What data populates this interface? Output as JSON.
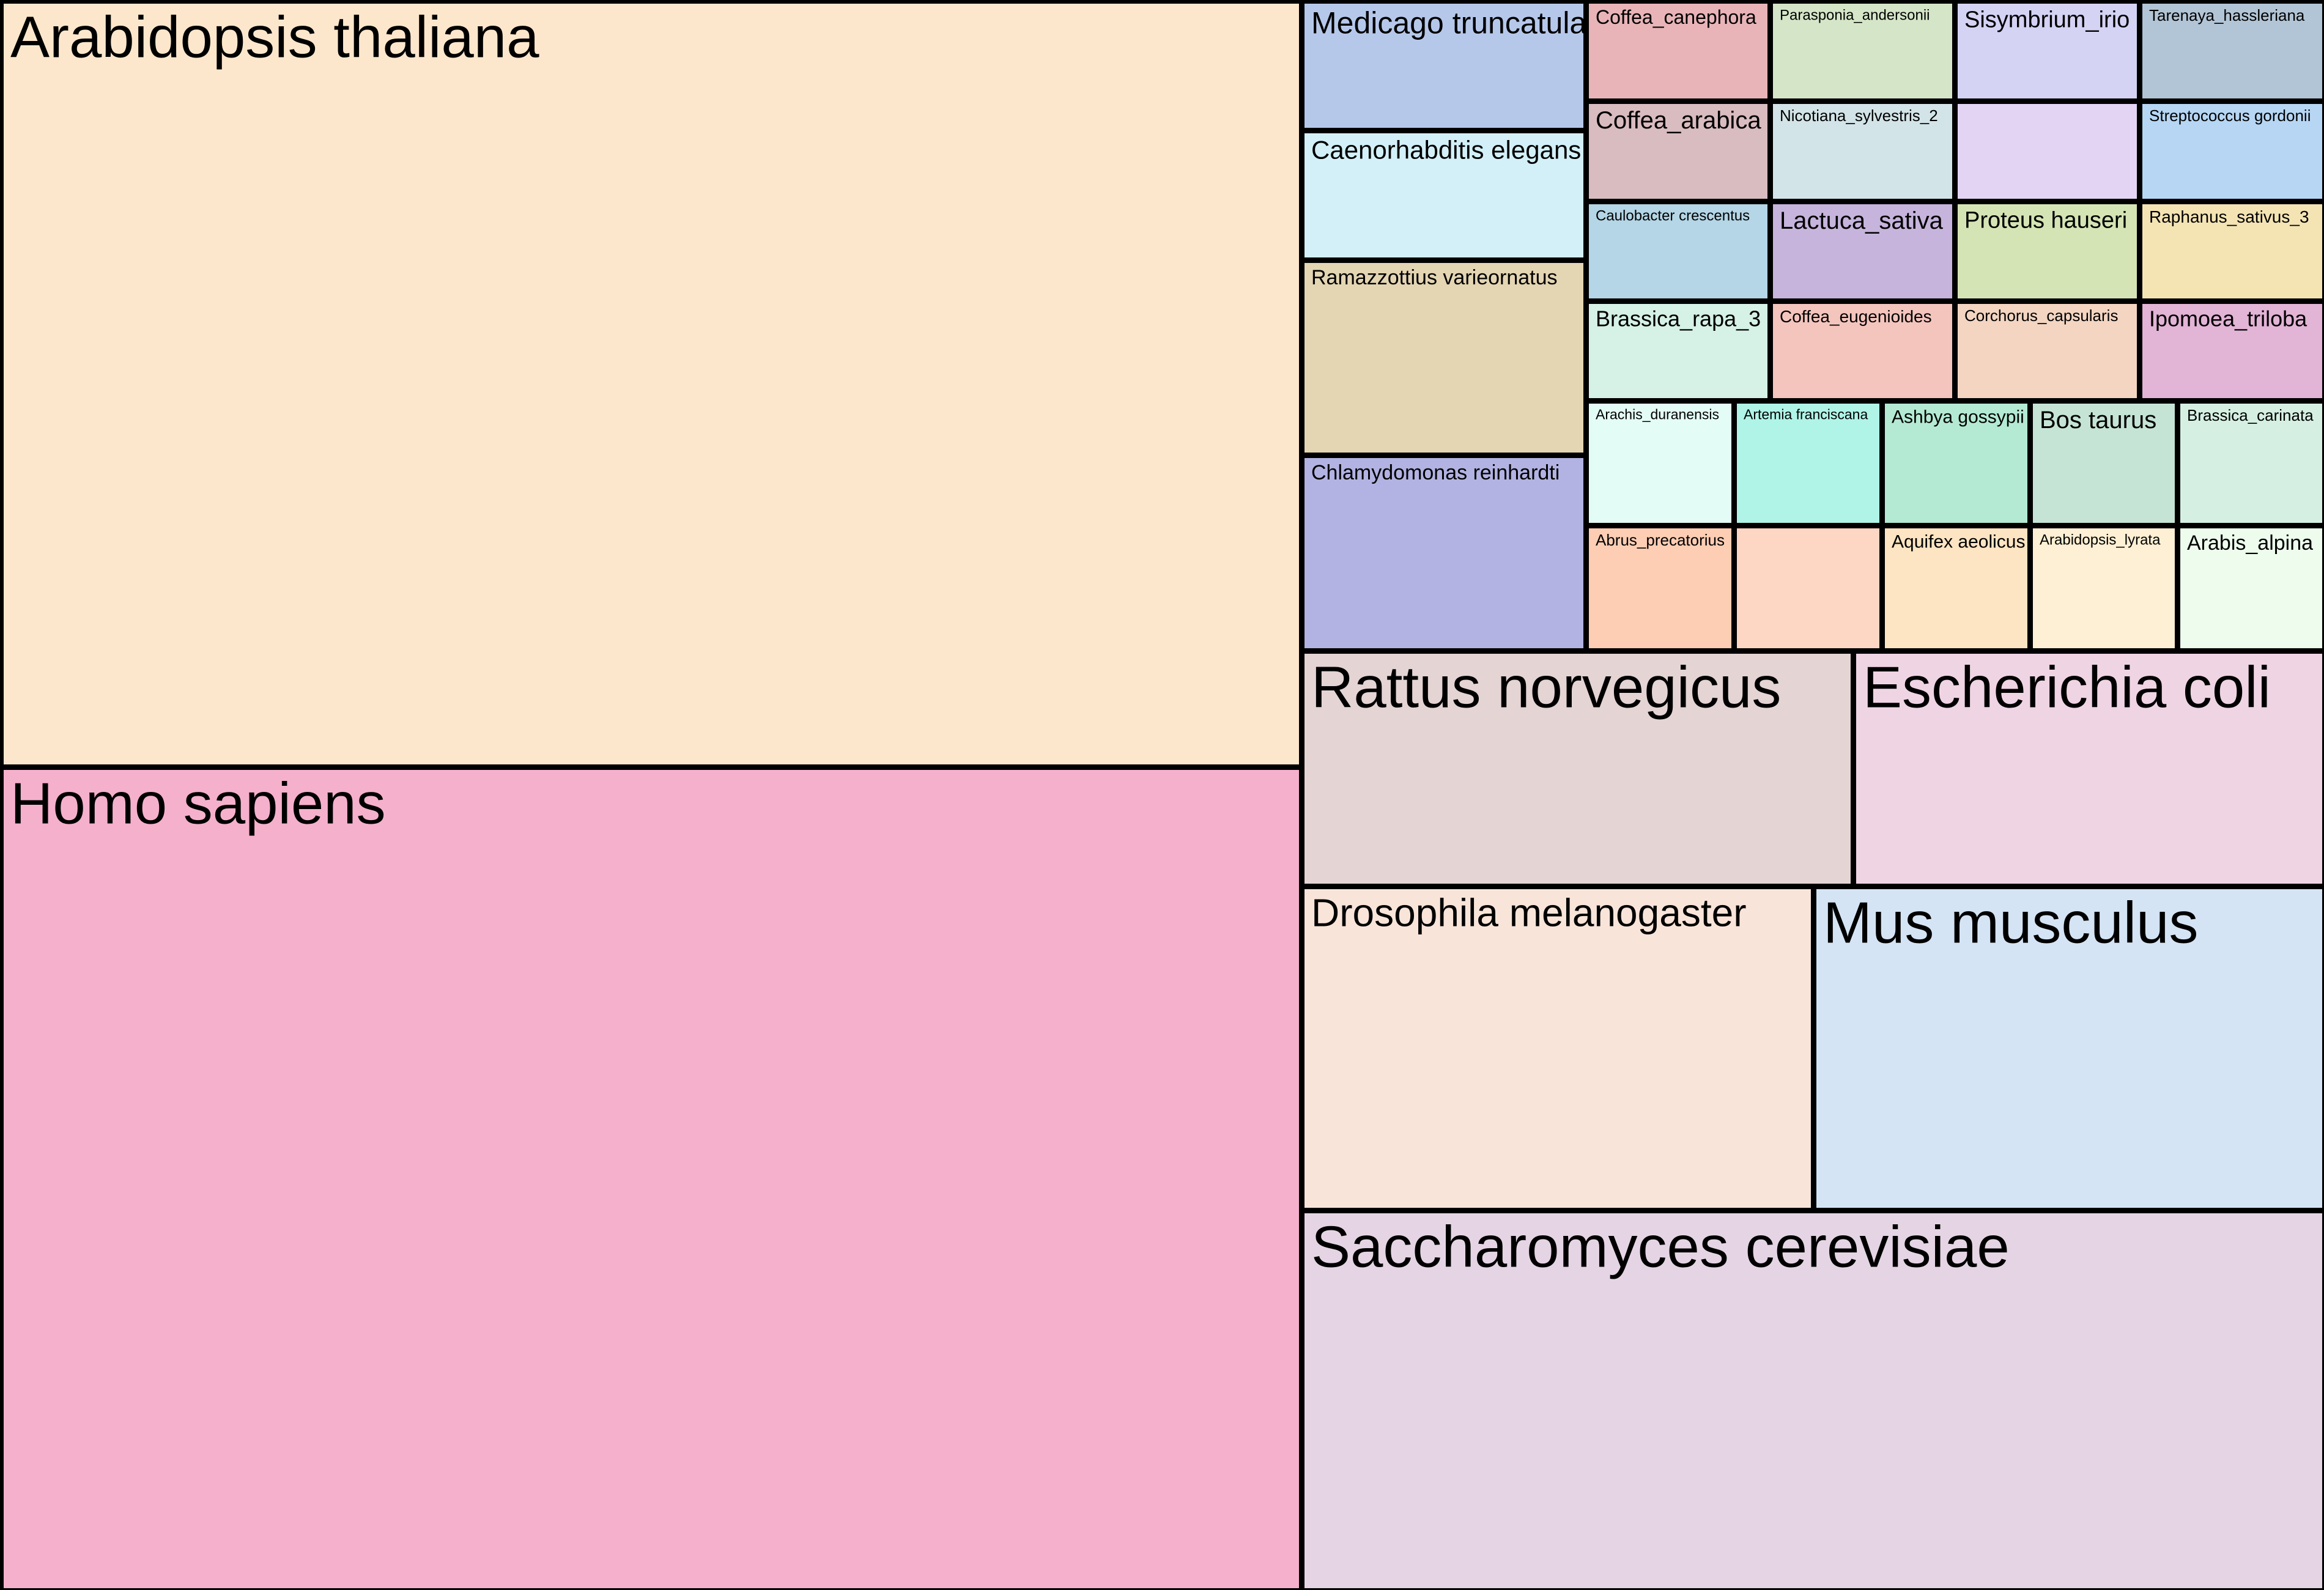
{
  "chart_data": {
    "type": "treemap",
    "title": "",
    "items": [
      {
        "label": "Arabidopsis thaliana",
        "value": 2660,
        "color": "#fde7cc"
      },
      {
        "label": "Homo sapiens",
        "value": 2845,
        "color": "#f5b0cc"
      },
      {
        "label": "Medicago truncatula",
        "value": 96,
        "color": "#b6c8ea"
      },
      {
        "label": "Caenorhabditis elegans",
        "value": 96,
        "color": "#d3f0f8"
      },
      {
        "label": "Ramazzottius varieornatus",
        "value": 144,
        "color": "#e4d5b3"
      },
      {
        "label": "Chlamydomonas reinhardti",
        "value": 144,
        "color": "#b2b3e2"
      },
      {
        "label": "Coffea_canephora",
        "value": 25,
        "color": "#e8b4b8"
      },
      {
        "label": "Parasponia_andersonii",
        "value": 25,
        "color": "#d5e6c8"
      },
      {
        "label": "Sisymbrium_irio",
        "value": 25,
        "color": "#d5d3f4"
      },
      {
        "label": "Tarenaya_hassleriana",
        "value": 25,
        "color": "#b2c5d6"
      },
      {
        "label": "Coffea_arabica",
        "value": 25,
        "color": "#d9bcc0"
      },
      {
        "label": "Nicotiana_sylvestris_2",
        "value": 25,
        "color": "#d3e4e8"
      },
      {
        "label": "",
        "value": 25,
        "color": "#e3d4f4"
      },
      {
        "label": "Streptococcus gordonii",
        "value": 25,
        "color": "#b6d6f4"
      },
      {
        "label": "Caulobacter crescentus",
        "value": 25,
        "color": "#b4d6e6"
      },
      {
        "label": "Lactuca_sativa",
        "value": 25,
        "color": "#c6b4dc"
      },
      {
        "label": "Proteus hauseri",
        "value": 25,
        "color": "#d5e4b4"
      },
      {
        "label": "Raphanus_sativus_3",
        "value": 25,
        "color": "#f4e4b4"
      },
      {
        "label": "Brassica_rapa_3",
        "value": 25,
        "color": "#d6f1e6"
      },
      {
        "label": "Coffea_eugenioides",
        "value": 25,
        "color": "#f4c5bd"
      },
      {
        "label": "Corchorus_capsularis",
        "value": 25,
        "color": "#f3d5c2"
      },
      {
        "label": "Ipomoea_triloba",
        "value": 25,
        "color": "#e2b4d6"
      },
      {
        "label": "Arachis_duranensis",
        "value": 25,
        "color": "#e4fcf6"
      },
      {
        "label": "Artemia franciscana",
        "value": 25,
        "color": "#b0f4e8"
      },
      {
        "label": "Ashbya gossypii",
        "value": 25,
        "color": "#b4ead4"
      },
      {
        "label": "Bos taurus",
        "value": 25,
        "color": "#c6e4d6"
      },
      {
        "label": "Brassica_carinata",
        "value": 25,
        "color": "#d5f0e2"
      },
      {
        "label": "Abrus_precatorius",
        "value": 25,
        "color": "#fdceb4"
      },
      {
        "label": "",
        "value": 25,
        "color": "#fdd6c4"
      },
      {
        "label": "Aquifex aeolicus",
        "value": 25,
        "color": "#fde4c2"
      },
      {
        "label": "Arabidopsis_lyrata",
        "value": 25,
        "color": "#fef0d4"
      },
      {
        "label": "Arabis_alpina",
        "value": 25,
        "color": "#eefcee"
      },
      {
        "label": "Rattus norvegicus",
        "value": 353,
        "color": "#e4d4d4"
      },
      {
        "label": "Escherichia coli",
        "value": 300,
        "color": "#efd4e4"
      },
      {
        "label": "Drosophila melanogaster",
        "value": 450,
        "color": "#f8e4d9"
      },
      {
        "label": "Mus musculus",
        "value": 450,
        "color": "#d5e4f4"
      },
      {
        "label": "Saccharomyces cerevisiae",
        "value": 828,
        "color": "#e5d5e4"
      }
    ]
  }
}
